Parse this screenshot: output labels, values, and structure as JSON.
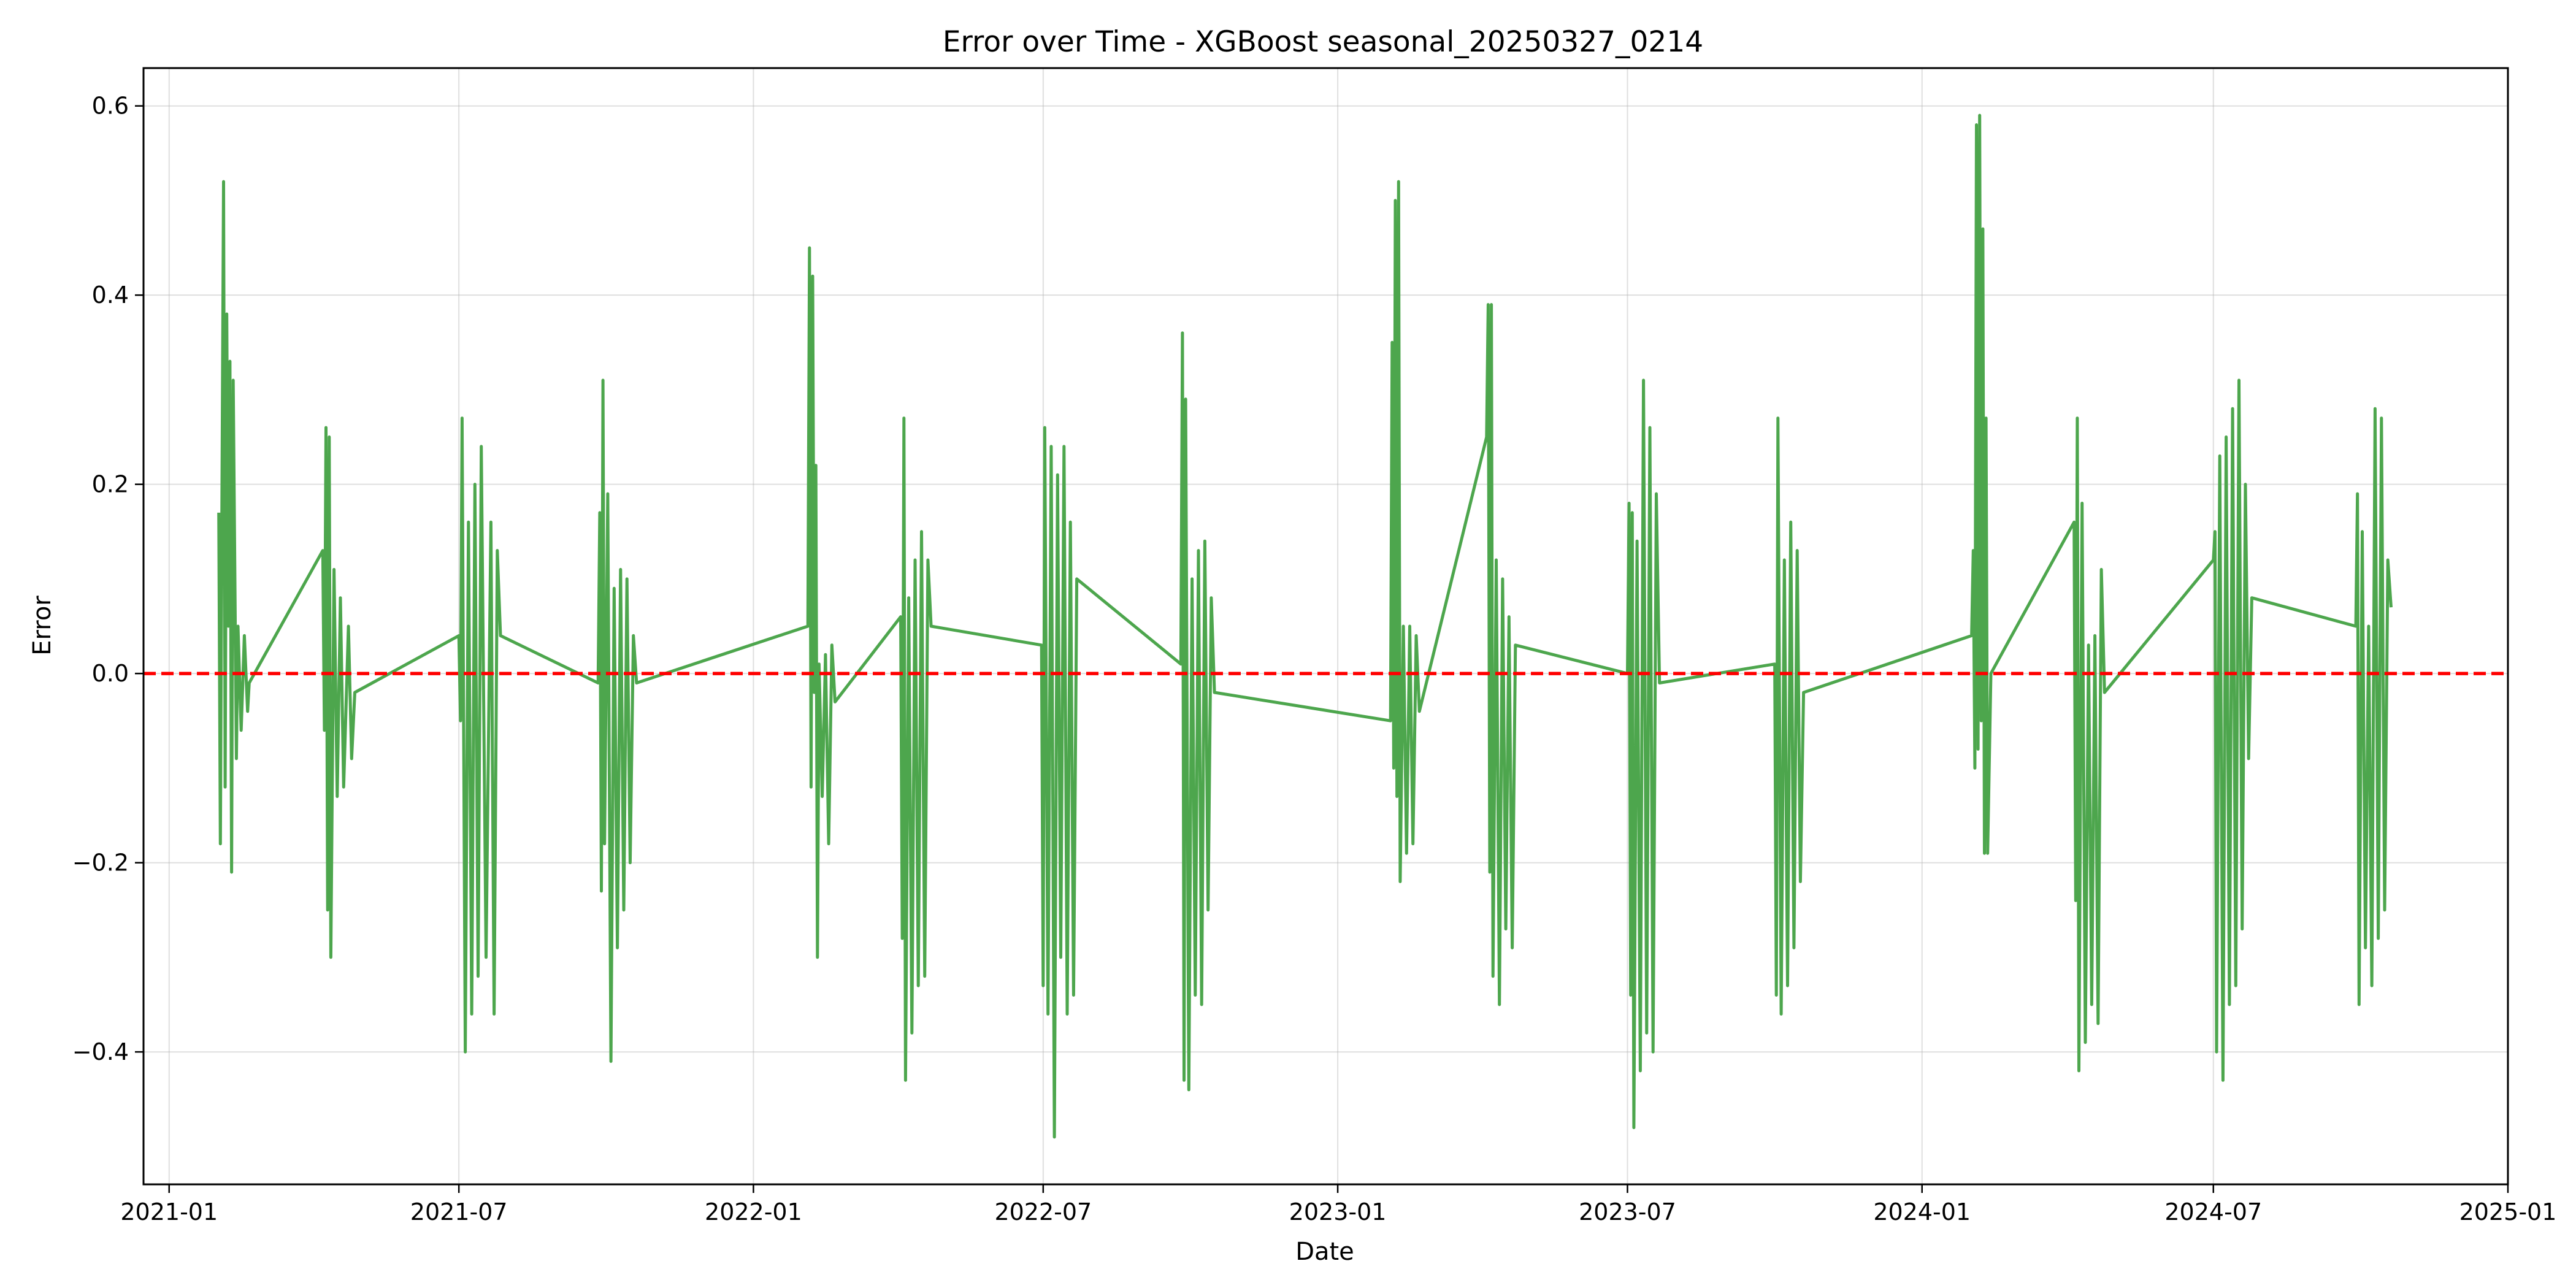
{
  "chart_data": {
    "type": "line",
    "title": "Error over Time - XGBoost seasonal_20250327_0214",
    "xlabel": "Date",
    "ylabel": "Error",
    "x_ticks": [
      "2021-01",
      "2021-07",
      "2022-01",
      "2022-07",
      "2023-01",
      "2023-07",
      "2024-01",
      "2024-07",
      "2025-01"
    ],
    "y_ticks": [
      -0.4,
      -0.2,
      0.0,
      0.2,
      0.4,
      0.6
    ],
    "y_tick_labels": [
      "−0.4",
      "−0.2",
      "0.0",
      "0.2",
      "0.4",
      "0.6"
    ],
    "xlim": [
      "2020-12-16",
      "2025-01-01"
    ],
    "ylim": [
      -0.54,
      0.64
    ],
    "grid": true,
    "line_color": "#4da64d",
    "reference_line": {
      "y": 0.0,
      "color": "#ff0000",
      "style": "dashed"
    },
    "series": [
      {
        "points": [
          {
            "x": "2021-02-01",
            "y": 0.17
          },
          {
            "x": "2021-02-02",
            "y": -0.18
          },
          {
            "x": "2021-02-03",
            "y": 0.19
          },
          {
            "x": "2021-02-04",
            "y": 0.52
          },
          {
            "x": "2021-02-05",
            "y": -0.12
          },
          {
            "x": "2021-02-06",
            "y": 0.38
          },
          {
            "x": "2021-02-07",
            "y": 0.05
          },
          {
            "x": "2021-02-08",
            "y": 0.33
          },
          {
            "x": "2021-02-09",
            "y": -0.21
          },
          {
            "x": "2021-02-10",
            "y": 0.31
          },
          {
            "x": "2021-02-12",
            "y": -0.09
          },
          {
            "x": "2021-02-13",
            "y": 0.05
          },
          {
            "x": "2021-02-15",
            "y": -0.06
          },
          {
            "x": "2021-02-17",
            "y": 0.04
          },
          {
            "x": "2021-02-19",
            "y": -0.04
          },
          {
            "x": "2021-02-20",
            "y": -0.01
          },
          {
            "x": "2021-04-07",
            "y": 0.13
          },
          {
            "x": "2021-04-08",
            "y": -0.06
          },
          {
            "x": "2021-04-09",
            "y": 0.26
          },
          {
            "x": "2021-04-10",
            "y": -0.25
          },
          {
            "x": "2021-04-11",
            "y": 0.25
          },
          {
            "x": "2021-04-12",
            "y": -0.3
          },
          {
            "x": "2021-04-14",
            "y": 0.11
          },
          {
            "x": "2021-04-16",
            "y": -0.13
          },
          {
            "x": "2021-04-18",
            "y": 0.08
          },
          {
            "x": "2021-04-20",
            "y": -0.12
          },
          {
            "x": "2021-04-23",
            "y": 0.05
          },
          {
            "x": "2021-04-25",
            "y": -0.09
          },
          {
            "x": "2021-04-27",
            "y": -0.02
          },
          {
            "x": "2021-07-01",
            "y": 0.04
          },
          {
            "x": "2021-07-02",
            "y": -0.05
          },
          {
            "x": "2021-07-03",
            "y": 0.27
          },
          {
            "x": "2021-07-05",
            "y": -0.4
          },
          {
            "x": "2021-07-07",
            "y": 0.16
          },
          {
            "x": "2021-07-09",
            "y": -0.36
          },
          {
            "x": "2021-07-11",
            "y": 0.2
          },
          {
            "x": "2021-07-13",
            "y": -0.32
          },
          {
            "x": "2021-07-15",
            "y": 0.24
          },
          {
            "x": "2021-07-18",
            "y": -0.3
          },
          {
            "x": "2021-07-21",
            "y": 0.16
          },
          {
            "x": "2021-07-23",
            "y": -0.36
          },
          {
            "x": "2021-07-25",
            "y": 0.13
          },
          {
            "x": "2021-07-27",
            "y": 0.04
          },
          {
            "x": "2021-09-26",
            "y": -0.01
          },
          {
            "x": "2021-09-27",
            "y": 0.17
          },
          {
            "x": "2021-09-28",
            "y": -0.23
          },
          {
            "x": "2021-09-29",
            "y": 0.31
          },
          {
            "x": "2021-09-30",
            "y": -0.18
          },
          {
            "x": "2021-10-02",
            "y": 0.19
          },
          {
            "x": "2021-10-04",
            "y": -0.41
          },
          {
            "x": "2021-10-06",
            "y": 0.09
          },
          {
            "x": "2021-10-08",
            "y": -0.29
          },
          {
            "x": "2021-10-10",
            "y": 0.11
          },
          {
            "x": "2021-10-12",
            "y": -0.25
          },
          {
            "x": "2021-10-14",
            "y": 0.1
          },
          {
            "x": "2021-10-16",
            "y": -0.2
          },
          {
            "x": "2021-10-18",
            "y": 0.04
          },
          {
            "x": "2021-10-20",
            "y": -0.01
          },
          {
            "x": "2022-02-04",
            "y": 0.05
          },
          {
            "x": "2022-02-05",
            "y": 0.45
          },
          {
            "x": "2022-02-06",
            "y": -0.12
          },
          {
            "x": "2022-02-07",
            "y": 0.42
          },
          {
            "x": "2022-02-08",
            "y": -0.02
          },
          {
            "x": "2022-02-09",
            "y": 0.22
          },
          {
            "x": "2022-02-10",
            "y": -0.3
          },
          {
            "x": "2022-02-11",
            "y": 0.01
          },
          {
            "x": "2022-02-13",
            "y": -0.13
          },
          {
            "x": "2022-02-15",
            "y": 0.02
          },
          {
            "x": "2022-02-17",
            "y": -0.18
          },
          {
            "x": "2022-02-19",
            "y": 0.03
          },
          {
            "x": "2022-02-21",
            "y": -0.03
          },
          {
            "x": "2022-04-03",
            "y": 0.06
          },
          {
            "x": "2022-04-04",
            "y": -0.28
          },
          {
            "x": "2022-04-05",
            "y": 0.27
          },
          {
            "x": "2022-04-06",
            "y": -0.43
          },
          {
            "x": "2022-04-08",
            "y": 0.08
          },
          {
            "x": "2022-04-10",
            "y": -0.38
          },
          {
            "x": "2022-04-12",
            "y": 0.12
          },
          {
            "x": "2022-04-14",
            "y": -0.33
          },
          {
            "x": "2022-04-16",
            "y": 0.15
          },
          {
            "x": "2022-04-18",
            "y": -0.32
          },
          {
            "x": "2022-04-20",
            "y": 0.12
          },
          {
            "x": "2022-04-22",
            "y": 0.05
          },
          {
            "x": "2022-06-30",
            "y": 0.03
          },
          {
            "x": "2022-07-01",
            "y": -0.33
          },
          {
            "x": "2022-07-02",
            "y": 0.26
          },
          {
            "x": "2022-07-04",
            "y": -0.36
          },
          {
            "x": "2022-07-06",
            "y": 0.24
          },
          {
            "x": "2022-07-08",
            "y": -0.49
          },
          {
            "x": "2022-07-10",
            "y": 0.21
          },
          {
            "x": "2022-07-12",
            "y": -0.3
          },
          {
            "x": "2022-07-14",
            "y": 0.24
          },
          {
            "x": "2022-07-16",
            "y": -0.36
          },
          {
            "x": "2022-07-18",
            "y": 0.16
          },
          {
            "x": "2022-07-20",
            "y": -0.34
          },
          {
            "x": "2022-07-22",
            "y": 0.1
          },
          {
            "x": "2022-09-25",
            "y": 0.01
          },
          {
            "x": "2022-09-26",
            "y": 0.36
          },
          {
            "x": "2022-09-27",
            "y": -0.43
          },
          {
            "x": "2022-09-28",
            "y": 0.29
          },
          {
            "x": "2022-09-30",
            "y": -0.44
          },
          {
            "x": "2022-10-02",
            "y": 0.1
          },
          {
            "x": "2022-10-04",
            "y": -0.34
          },
          {
            "x": "2022-10-06",
            "y": 0.13
          },
          {
            "x": "2022-10-08",
            "y": -0.35
          },
          {
            "x": "2022-10-10",
            "y": 0.14
          },
          {
            "x": "2022-10-12",
            "y": -0.25
          },
          {
            "x": "2022-10-14",
            "y": 0.08
          },
          {
            "x": "2022-10-16",
            "y": -0.02
          },
          {
            "x": "2023-02-03",
            "y": -0.05
          },
          {
            "x": "2023-02-04",
            "y": 0.35
          },
          {
            "x": "2023-02-05",
            "y": -0.1
          },
          {
            "x": "2023-02-06",
            "y": 0.5
          },
          {
            "x": "2023-02-07",
            "y": -0.13
          },
          {
            "x": "2023-02-08",
            "y": 0.52
          },
          {
            "x": "2023-02-09",
            "y": -0.22
          },
          {
            "x": "2023-02-11",
            "y": 0.05
          },
          {
            "x": "2023-02-13",
            "y": -0.19
          },
          {
            "x": "2023-02-15",
            "y": 0.05
          },
          {
            "x": "2023-02-17",
            "y": -0.18
          },
          {
            "x": "2023-02-19",
            "y": 0.04
          },
          {
            "x": "2023-02-21",
            "y": -0.04
          },
          {
            "x": "2023-04-04",
            "y": 0.25
          },
          {
            "x": "2023-04-05",
            "y": 0.39
          },
          {
            "x": "2023-04-06",
            "y": -0.21
          },
          {
            "x": "2023-04-07",
            "y": 0.39
          },
          {
            "x": "2023-04-08",
            "y": -0.32
          },
          {
            "x": "2023-04-10",
            "y": 0.12
          },
          {
            "x": "2023-04-12",
            "y": -0.35
          },
          {
            "x": "2023-04-14",
            "y": 0.1
          },
          {
            "x": "2023-04-16",
            "y": -0.27
          },
          {
            "x": "2023-04-18",
            "y": 0.06
          },
          {
            "x": "2023-04-20",
            "y": -0.29
          },
          {
            "x": "2023-04-22",
            "y": 0.03
          },
          {
            "x": "2023-07-01",
            "y": 0.0
          },
          {
            "x": "2023-07-02",
            "y": 0.18
          },
          {
            "x": "2023-07-03",
            "y": -0.34
          },
          {
            "x": "2023-07-04",
            "y": 0.17
          },
          {
            "x": "2023-07-05",
            "y": -0.48
          },
          {
            "x": "2023-07-07",
            "y": 0.14
          },
          {
            "x": "2023-07-09",
            "y": -0.42
          },
          {
            "x": "2023-07-11",
            "y": 0.31
          },
          {
            "x": "2023-07-13",
            "y": -0.38
          },
          {
            "x": "2023-07-15",
            "y": 0.26
          },
          {
            "x": "2023-07-17",
            "y": -0.4
          },
          {
            "x": "2023-07-19",
            "y": 0.19
          },
          {
            "x": "2023-07-21",
            "y": -0.01
          },
          {
            "x": "2023-10-01",
            "y": 0.01
          },
          {
            "x": "2023-10-02",
            "y": -0.34
          },
          {
            "x": "2023-10-03",
            "y": 0.27
          },
          {
            "x": "2023-10-05",
            "y": -0.36
          },
          {
            "x": "2023-10-07",
            "y": 0.12
          },
          {
            "x": "2023-10-09",
            "y": -0.33
          },
          {
            "x": "2023-10-11",
            "y": 0.16
          },
          {
            "x": "2023-10-13",
            "y": -0.29
          },
          {
            "x": "2023-10-15",
            "y": 0.13
          },
          {
            "x": "2023-10-17",
            "y": -0.22
          },
          {
            "x": "2023-10-19",
            "y": -0.02
          },
          {
            "x": "2024-02-01",
            "y": 0.04
          },
          {
            "x": "2024-02-02",
            "y": 0.13
          },
          {
            "x": "2024-02-03",
            "y": -0.1
          },
          {
            "x": "2024-02-04",
            "y": 0.58
          },
          {
            "x": "2024-02-05",
            "y": -0.08
          },
          {
            "x": "2024-02-06",
            "y": 0.59
          },
          {
            "x": "2024-02-07",
            "y": -0.05
          },
          {
            "x": "2024-02-08",
            "y": 0.47
          },
          {
            "x": "2024-02-09",
            "y": -0.19
          },
          {
            "x": "2024-02-10",
            "y": 0.27
          },
          {
            "x": "2024-02-11",
            "y": -0.19
          },
          {
            "x": "2024-02-13",
            "y": 0.0
          },
          {
            "x": "2024-04-05",
            "y": 0.16
          },
          {
            "x": "2024-04-06",
            "y": -0.24
          },
          {
            "x": "2024-04-07",
            "y": 0.27
          },
          {
            "x": "2024-04-08",
            "y": -0.42
          },
          {
            "x": "2024-04-10",
            "y": 0.18
          },
          {
            "x": "2024-04-12",
            "y": -0.39
          },
          {
            "x": "2024-04-14",
            "y": 0.03
          },
          {
            "x": "2024-04-16",
            "y": -0.35
          },
          {
            "x": "2024-04-18",
            "y": 0.04
          },
          {
            "x": "2024-04-20",
            "y": -0.37
          },
          {
            "x": "2024-04-22",
            "y": 0.11
          },
          {
            "x": "2024-04-24",
            "y": -0.02
          },
          {
            "x": "2024-07-01",
            "y": 0.12
          },
          {
            "x": "2024-07-02",
            "y": 0.15
          },
          {
            "x": "2024-07-03",
            "y": -0.4
          },
          {
            "x": "2024-07-05",
            "y": 0.23
          },
          {
            "x": "2024-07-07",
            "y": -0.43
          },
          {
            "x": "2024-07-09",
            "y": 0.25
          },
          {
            "x": "2024-07-11",
            "y": -0.35
          },
          {
            "x": "2024-07-13",
            "y": 0.28
          },
          {
            "x": "2024-07-15",
            "y": -0.33
          },
          {
            "x": "2024-07-17",
            "y": 0.31
          },
          {
            "x": "2024-07-19",
            "y": -0.27
          },
          {
            "x": "2024-07-21",
            "y": 0.2
          },
          {
            "x": "2024-07-23",
            "y": -0.09
          },
          {
            "x": "2024-07-25",
            "y": 0.08
          },
          {
            "x": "2024-09-28",
            "y": 0.05
          },
          {
            "x": "2024-09-29",
            "y": 0.19
          },
          {
            "x": "2024-09-30",
            "y": -0.35
          },
          {
            "x": "2024-10-02",
            "y": 0.15
          },
          {
            "x": "2024-10-04",
            "y": -0.29
          },
          {
            "x": "2024-10-06",
            "y": 0.05
          },
          {
            "x": "2024-10-08",
            "y": -0.33
          },
          {
            "x": "2024-10-10",
            "y": 0.28
          },
          {
            "x": "2024-10-12",
            "y": -0.28
          },
          {
            "x": "2024-10-14",
            "y": 0.27
          },
          {
            "x": "2024-10-16",
            "y": -0.25
          },
          {
            "x": "2024-10-18",
            "y": 0.12
          },
          {
            "x": "2024-10-20",
            "y": 0.07
          }
        ]
      }
    ]
  }
}
